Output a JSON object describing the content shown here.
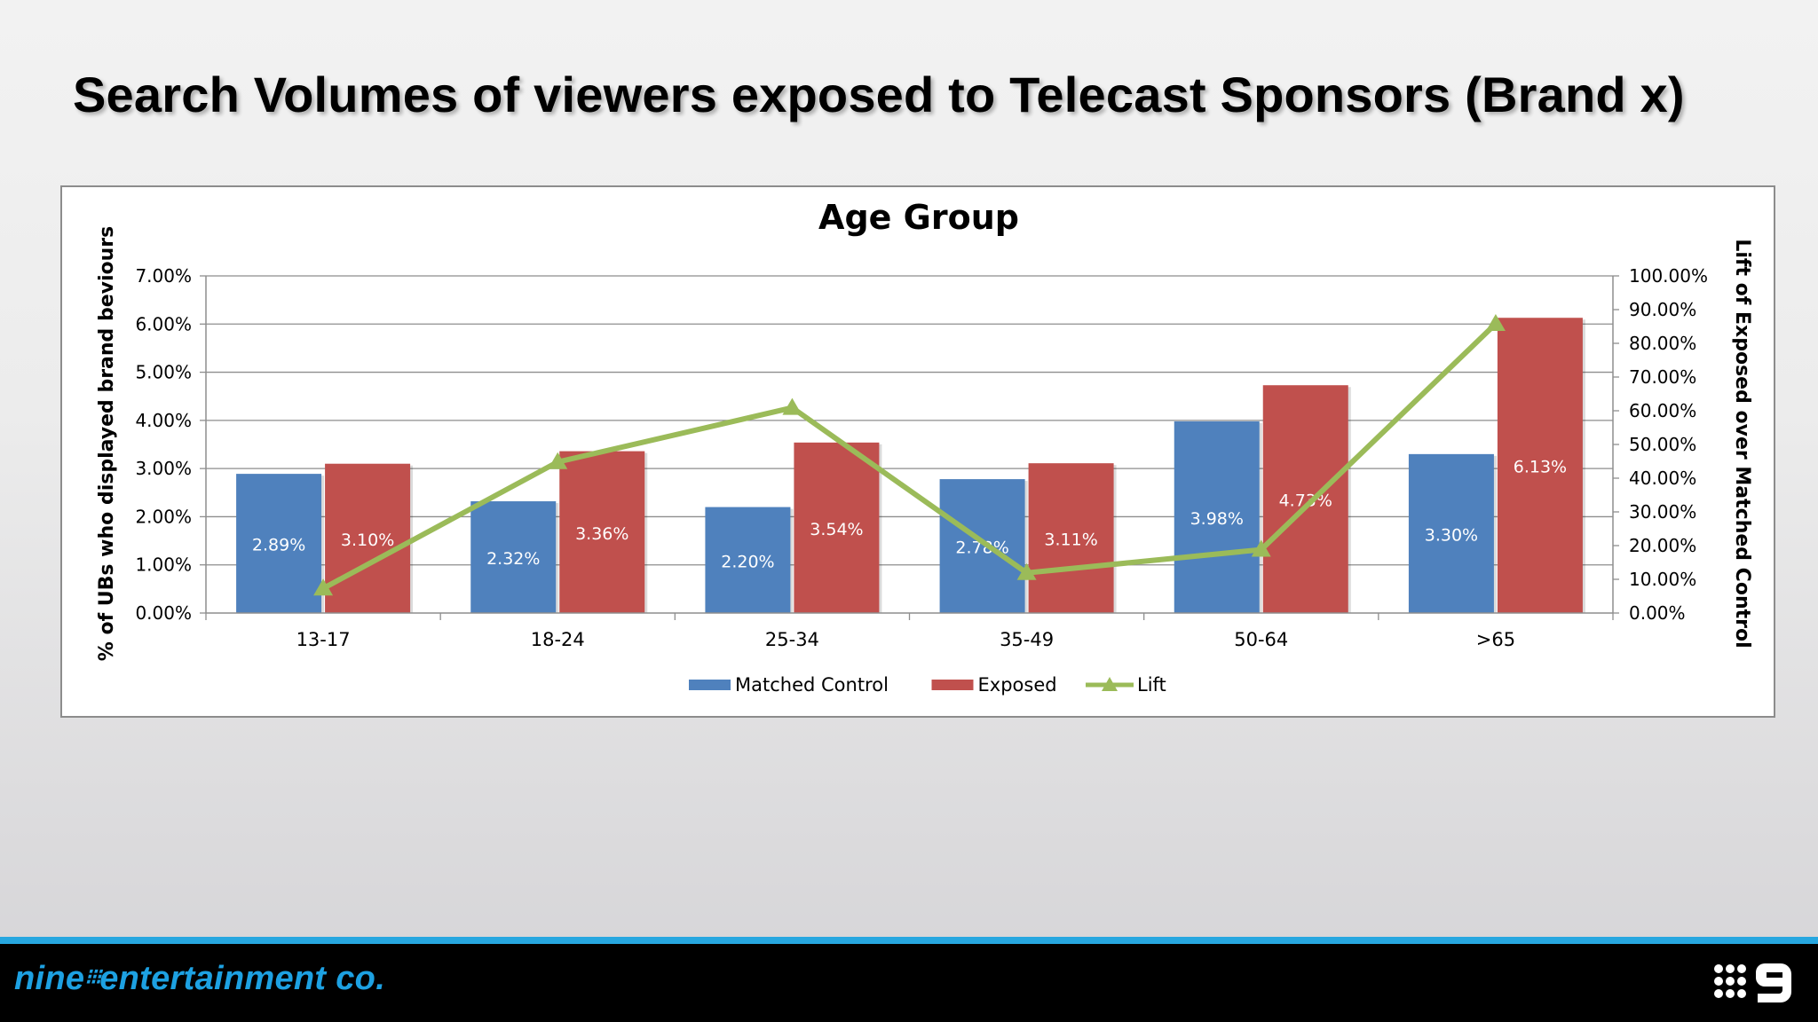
{
  "slide": {
    "title": "Search Volumes of viewers exposed to Telecast Sponsors (Brand x)"
  },
  "chart_data": {
    "type": "bar",
    "title": "Age Group",
    "categories": [
      "13-17",
      "18-24",
      "25-34",
      "35-49",
      "50-64",
      ">65"
    ],
    "ylabel": "% of UBs who displayed brand beviours",
    "y2label": "Lift of Exposed over Matched Control",
    "ylim": [
      0,
      7
    ],
    "y2lim": [
      0,
      100
    ],
    "y_ticks": [
      "0.00%",
      "1.00%",
      "2.00%",
      "3.00%",
      "4.00%",
      "5.00%",
      "6.00%",
      "7.00%"
    ],
    "y2_ticks": [
      "0.00%",
      "10.00%",
      "20.00%",
      "30.00%",
      "40.00%",
      "50.00%",
      "60.00%",
      "70.00%",
      "80.00%",
      "90.00%",
      "100.00%"
    ],
    "grid": true,
    "legend_position": "bottom",
    "series": [
      {
        "name": "Matched Control",
        "type": "bar",
        "axis": "left",
        "color": "#4f81bd",
        "values": [
          2.89,
          2.32,
          2.2,
          2.78,
          3.98,
          3.3
        ],
        "labels": [
          "2.89%",
          "2.32%",
          "2.20%",
          "2.78%",
          "3.98%",
          "3.30%"
        ]
      },
      {
        "name": "Exposed",
        "type": "bar",
        "axis": "left",
        "color": "#c0504d",
        "values": [
          3.1,
          3.36,
          3.54,
          3.11,
          4.73,
          6.13
        ],
        "labels": [
          "3.10%",
          "3.36%",
          "3.54%",
          "3.11%",
          "4.73%",
          "6.13%"
        ]
      },
      {
        "name": "Lift",
        "type": "line",
        "axis": "right",
        "color": "#9bbb59",
        "marker": "triangle",
        "values": [
          7.3,
          44.8,
          60.9,
          11.9,
          18.8,
          85.8
        ]
      }
    ]
  },
  "footer": {
    "brand": "nine",
    "brand_rest": "entertainment co.",
    "logo": "nine-network-logo-icon"
  }
}
